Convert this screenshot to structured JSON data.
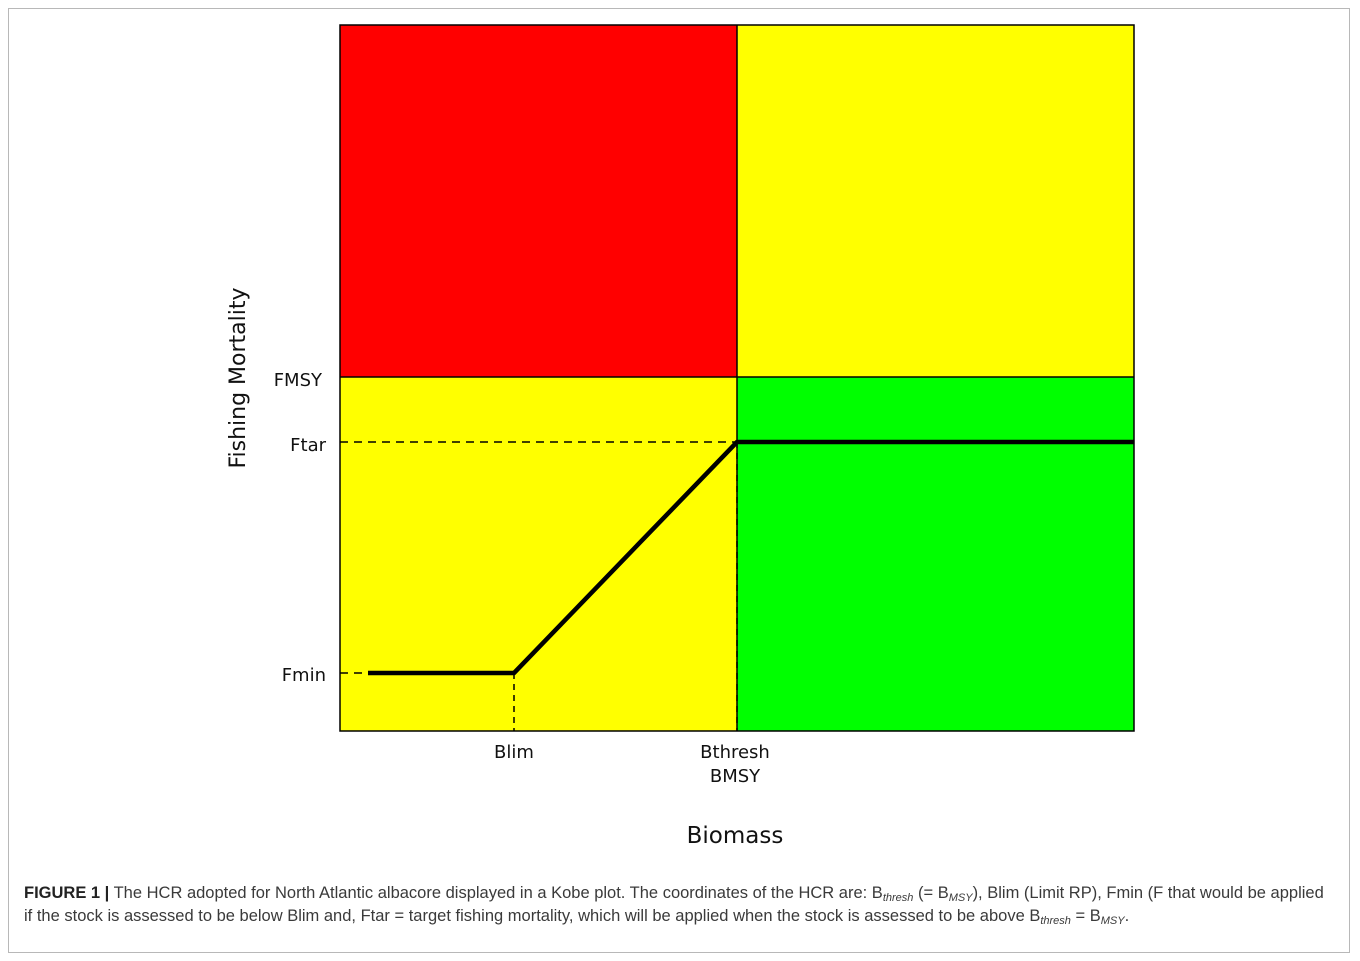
{
  "figure": {
    "label": "FIGURE 1 |",
    "caption_part1": "The HCR adopted for North Atlantic albacore displayed in a Kobe plot. The coordinates of the HCR are: B",
    "sub_thresh": "thresh",
    "caption_part2": "(= B",
    "sub_msy": "MSY",
    "caption_part3": "), Blim (Limit RP), Fmin (F that would be applied if the stock is assessed to be below Blim and, Ftar = target fishing mortality, which will be applied when the stock is assessed to be above B",
    "caption_part4": "= B",
    "caption_part5": "."
  },
  "chart_data": {
    "type": "kobe-plot",
    "xlabel": "Biomass",
    "ylabel": "Fishing Mortality",
    "x_reference_labels": {
      "blim": "Blim",
      "bthresh": "Bthresh",
      "bmsy": "BMSY"
    },
    "y_reference_labels": {
      "fmsy": "FMSY",
      "ftar": "Ftar",
      "fmin": "Fmin"
    },
    "zones": [
      {
        "name": "overfishing-overfished",
        "color": "#ff0000"
      },
      {
        "name": "overfishing-not-overfished",
        "color": "#ffff00"
      },
      {
        "name": "not-overfishing-overfished",
        "color": "#ffff00"
      },
      {
        "name": "not-overfishing-not-overfished",
        "color": "#00ff00"
      }
    ],
    "hcr_line_color": "#000000"
  }
}
